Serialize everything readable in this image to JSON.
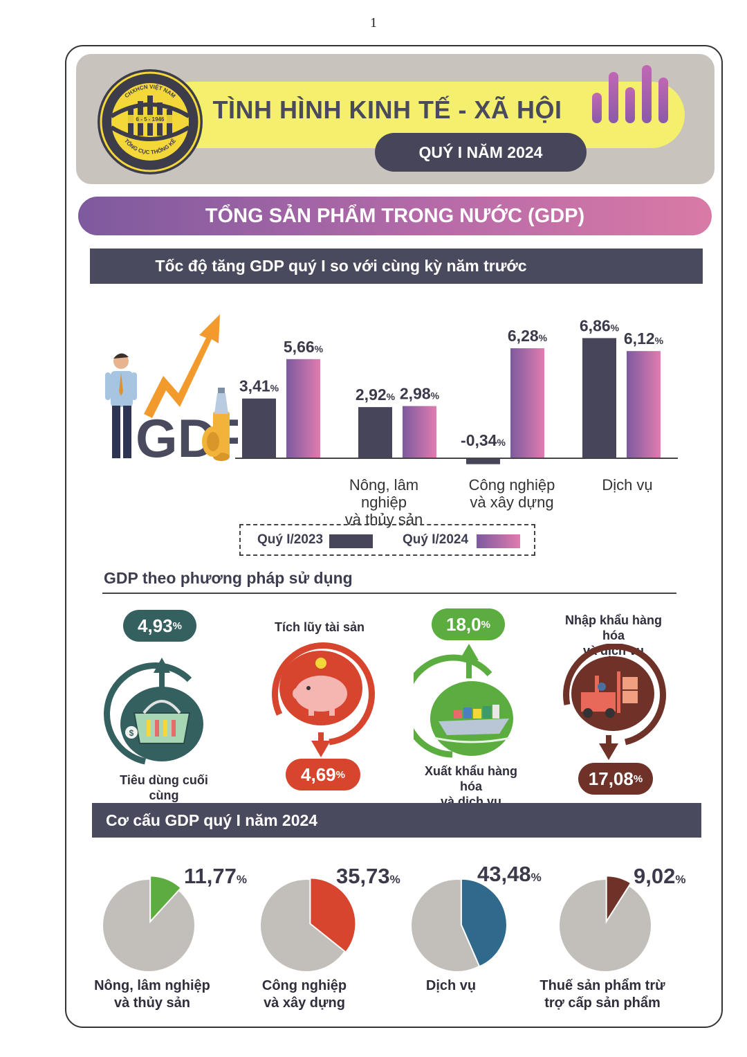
{
  "page_number": "1",
  "header": {
    "title": "TÌNH HÌNH KINH TẾ - XÃ HỘI",
    "subtitle": "QUÝ I NĂM 2024",
    "logo_top": "CHXHCN VIỆT NAM",
    "logo_date": "6 - 5 - 1946",
    "logo_bottom": "TỔNG CỤC THỐNG KÊ"
  },
  "section_title": "TỔNG SẢN PHẨM TRONG NƯỚC (GDP)",
  "growth_title": "Tốc độ tăng GDP quý I so với cùng kỳ năm trước",
  "gdp_word": "GDP",
  "chart_data": [
    {
      "type": "bar",
      "title": "Tốc độ tăng GDP quý I so với cùng kỳ năm trước",
      "categories": [
        "",
        "Nông, lâm nghiệp và thủy sản",
        "Công nghiệp và xây dựng",
        "Dịch vụ"
      ],
      "series": [
        {
          "name": "Quý I/2023",
          "values": [
            3.41,
            2.92,
            -0.34,
            6.86
          ],
          "color": "#46455a"
        },
        {
          "name": "Quý I/2024",
          "values": [
            5.66,
            2.98,
            6.28,
            6.12
          ],
          "color": "#b56aa8"
        }
      ],
      "data_labels": {
        "2023": [
          "3,41",
          "2,92",
          "-0,34",
          "6,86"
        ],
        "2024": [
          "5,66",
          "2,98",
          "6,28",
          "6,12"
        ]
      },
      "unit": "%",
      "ylim": [
        -0.5,
        7.5
      ],
      "legend": "bottom"
    },
    {
      "type": "table",
      "title": "GDP theo phương pháp sử dụng",
      "items": [
        {
          "label": "Tiêu dùng cuối cùng",
          "value": 4.93,
          "display": "4,93",
          "unit": "%",
          "color": "#356060"
        },
        {
          "label": "Tích lũy tài sản",
          "value": 4.69,
          "display": "4,69",
          "unit": "%",
          "color": "#d8452e"
        },
        {
          "label": "Xuất khẩu hàng hóa và dịch vụ",
          "value": 18.0,
          "display": "18,0",
          "unit": "%",
          "color": "#5aad3e"
        },
        {
          "label": "Nhập khẩu hàng hóa và dịch vụ",
          "value": 17.08,
          "display": "17,08",
          "unit": "%",
          "color": "#6e3228"
        }
      ]
    },
    {
      "type": "pie",
      "title": "Cơ cấu GDP quý I năm 2024",
      "items": [
        {
          "label": "Nông, lâm nghiệp và thủy sản",
          "value": 11.77,
          "display": "11,77",
          "color": "#5aad3e"
        },
        {
          "label": "Công nghiệp và xây dựng",
          "value": 35.73,
          "display": "35,73",
          "color": "#d8452e"
        },
        {
          "label": "Dịch vụ",
          "value": 43.48,
          "display": "43,48",
          "color": "#2f6a8c"
        },
        {
          "label": "Thuế sản phẩm trừ trợ cấp sản phẩm",
          "value": 9.02,
          "display": "9,02",
          "color": "#6e3228"
        }
      ],
      "unit": "%",
      "rest_color": "#c2beb9"
    }
  ],
  "labels": {
    "cat_agri_1": "Nông, lâm nghiệp",
    "cat_agri_2": "và thủy sản",
    "cat_ind_1": "Công nghiệp",
    "cat_ind_2": "và xây dựng",
    "cat_svc": "Dịch vụ",
    "legend_2023": "Quý I/2023",
    "legend_2024": "Quý I/2024",
    "use_heading": "GDP theo phương pháp sử dụng",
    "use_consume": "Tiêu dùng cuối cùng",
    "use_accum": "Tích lũy tài sản",
    "use_export_1": "Xuất khẩu hàng hóa",
    "use_export_2": "và dịch vụ",
    "use_import_1": "Nhập khẩu hàng hóa",
    "use_import_2": "và dịch vụ",
    "structure_heading": "Cơ cấu GDP quý I năm 2024",
    "pie_agri_1": "Nông, lâm nghiệp",
    "pie_agri_2": "và thủy sản",
    "pie_ind_1": "Công nghiệp",
    "pie_ind_2": "và xây dựng",
    "pie_svc": "Dịch vụ",
    "pie_tax_1": "Thuế sản phẩm trừ",
    "pie_tax_2": "trợ cấp sản phẩm",
    "unit": "%"
  }
}
